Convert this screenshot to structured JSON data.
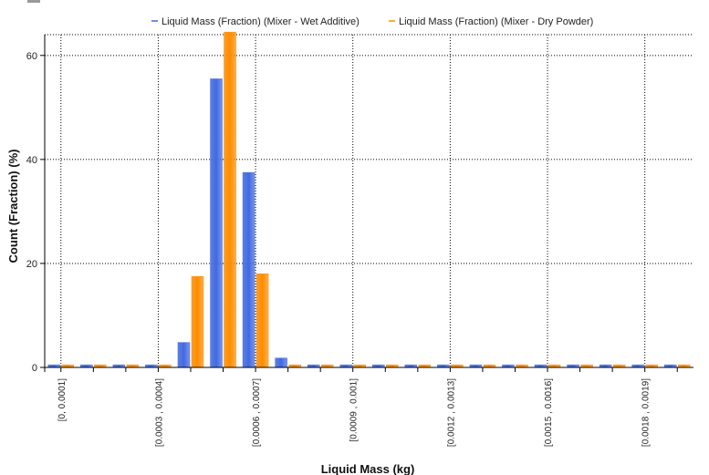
{
  "chart_data": {
    "type": "bar",
    "title": "",
    "xlabel": "Liquid Mass (kg)",
    "ylabel": "Count (Fraction) (%)",
    "ylim": [
      0,
      64
    ],
    "yticks": [
      0,
      20,
      40,
      60
    ],
    "grid": true,
    "legend_position": "top",
    "categories": [
      "[0, 0.0001]",
      "",
      "",
      "[0.0003 , 0.0004]",
      "",
      "",
      "[0.0006 , 0.0007]",
      "",
      "",
      "[0.0009 , 0.001]",
      "",
      "",
      "[0.0012 , 0.0013]",
      "",
      "",
      "[0.0015 , 0.0016]",
      "",
      "",
      "[0.0018 , 0.0019]",
      ""
    ],
    "series": [
      {
        "name": "Liquid Mass (Fraction) (Mixer - Wet Additive)",
        "color": "#4169e1",
        "values": [
          0.5,
          0.5,
          0.5,
          0.5,
          4.8,
          55.5,
          37.5,
          1.8,
          0.5,
          0.5,
          0.5,
          0.5,
          0.5,
          0.5,
          0.5,
          0.5,
          0.5,
          0.5,
          0.5,
          0.5
        ]
      },
      {
        "name": "Liquid Mass (Fraction) (Mixer - Dry Powder)",
        "color": "#ff8c00",
        "values": [
          0.5,
          0.5,
          0.5,
          0.5,
          17.5,
          64.5,
          18.0,
          0.5,
          0.5,
          0.5,
          0.5,
          0.5,
          0.5,
          0.5,
          0.5,
          0.5,
          0.5,
          0.5,
          0.5,
          0.5
        ]
      }
    ]
  }
}
